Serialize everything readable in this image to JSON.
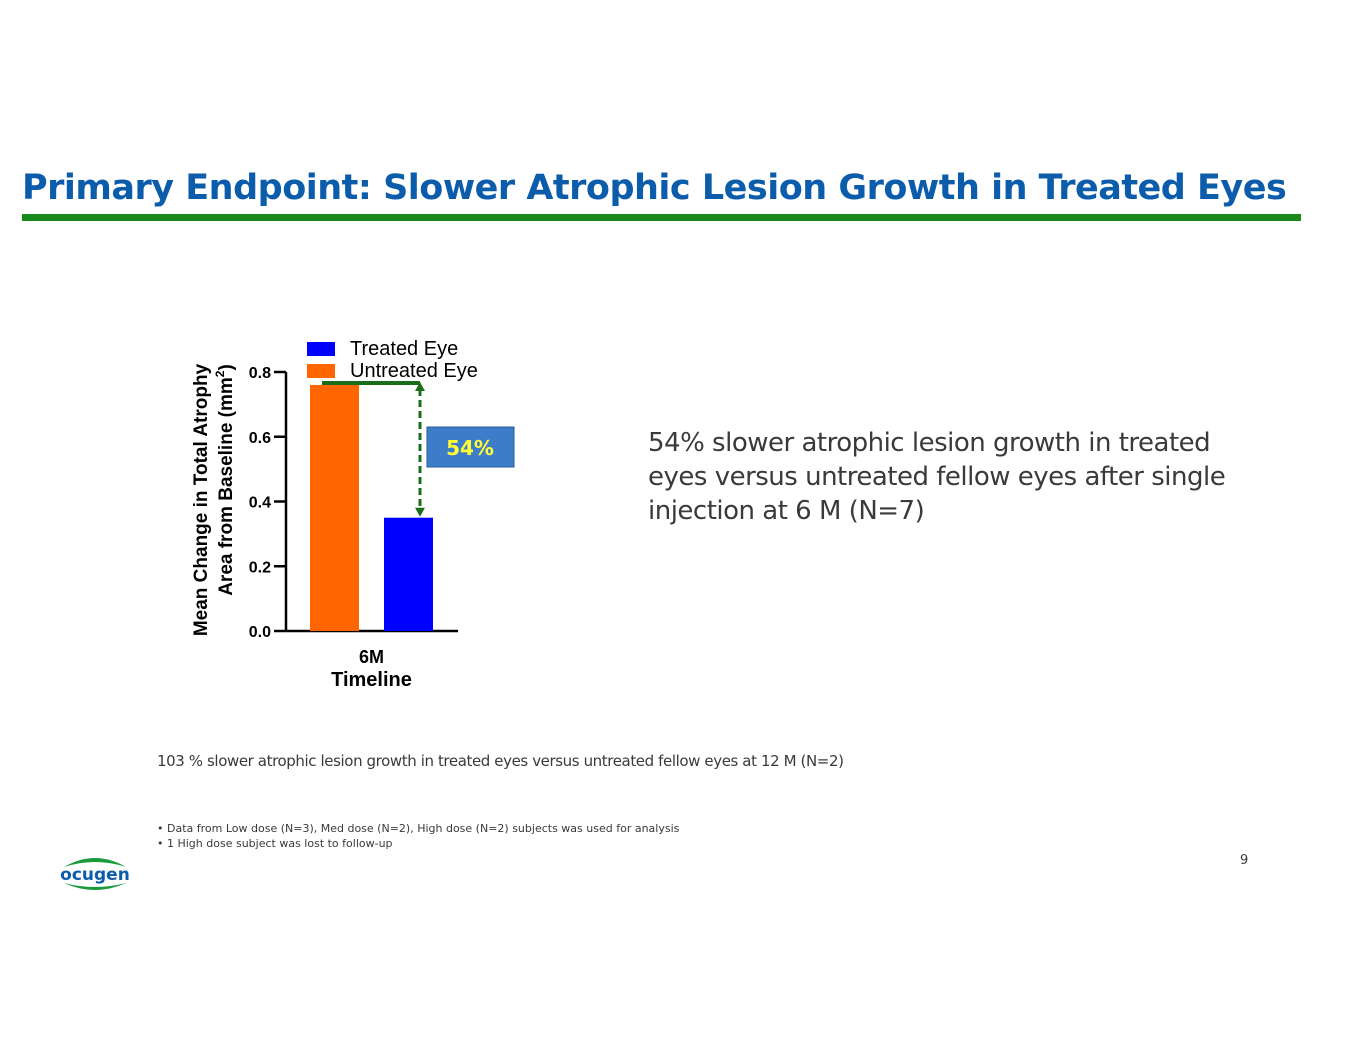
{
  "slide": {
    "title": "Primary Endpoint: Slower Atrophic Lesion Growth in Treated Eyes",
    "callout": "54% slower atrophic lesion growth in treated eyes versus untreated fellow eyes after single injection at 6 M (N=7)",
    "note": "103 % slower atrophic lesion growth in treated eyes versus untreated fellow eyes at 12 M (N=2)",
    "footnotes": [
      "• Data from Low dose (N=3), Med dose (N=2), High dose (N=2) subjects was used for analysis",
      "• 1 High dose subject was lost to follow-up"
    ],
    "page_number": "9",
    "logo_text": "ocugen"
  },
  "colors": {
    "title": "#0b5cab",
    "rule": "#1a8a1a",
    "treated": "#0000ff",
    "untreated": "#ff6600",
    "arrow": "#1a6e1a",
    "badge_bg": "#3d7cc8",
    "badge_text": "#ffff33"
  },
  "chart_data": {
    "type": "bar",
    "categories": [
      "6M"
    ],
    "series": [
      {
        "name": "Untreated Eye",
        "values": [
          0.76
        ],
        "color": "#ff6600"
      },
      {
        "name": "Treated Eye",
        "values": [
          0.35
        ],
        "color": "#0000ff"
      }
    ],
    "legend": [
      "Treated Eye",
      "Untreated Eye"
    ],
    "legend_position": "top",
    "ylabel_line1": "Mean Change in Total Atrophy",
    "ylabel_line2_prefix": "Area from Baseline (mm",
    "ylabel_sup": "2",
    "ylabel_line2_suffix": ")",
    "xlabel": "Timeline",
    "yticks": [
      "0.0",
      "0.2",
      "0.4",
      "0.6",
      "0.8"
    ],
    "ylim": [
      0,
      0.8
    ],
    "annotation": "54%",
    "grid": false
  }
}
